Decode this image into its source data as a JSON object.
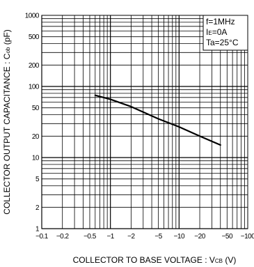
{
  "chart_data": {
    "type": "line",
    "x_scale": "log",
    "y_scale": "log",
    "xlim": [
      -0.1,
      -100
    ],
    "ylim": [
      1,
      1000
    ],
    "x_ticks": [
      -0.1,
      -0.2,
      -0.5,
      -1,
      -2,
      -5,
      -10,
      -20,
      -50,
      -100
    ],
    "x_tick_labels": [
      "−0.1",
      "−0.2",
      "−0.5",
      "−1",
      "−2",
      "−5",
      "−10",
      "−20",
      "−50",
      "−100"
    ],
    "y_ticks": [
      1,
      2,
      5,
      10,
      20,
      50,
      100,
      200,
      500,
      1000
    ],
    "y_tick_labels": [
      "1",
      "2",
      "5",
      "10",
      "20",
      "50",
      "100",
      "200",
      "500",
      "1000"
    ],
    "xlabel": "COLLECTOR TO BASE VOLTAGE : V",
    "xlabel_sub": "CB",
    "xlabel_unit": " (V)",
    "ylabel": "COLLECTOR OUTPUT CAPACITANCE : C",
    "ylabel_sub": "ob",
    "ylabel_unit": " (pF)",
    "grid": true,
    "legend": {
      "placement": "top-right",
      "lines": [
        {
          "main": "f=1MHz"
        },
        {
          "main": "I",
          "sub": "E",
          "rest": "=0A"
        },
        {
          "main": "Ta=25°C"
        }
      ]
    },
    "series": [
      {
        "x": [
          -0.6,
          -1,
          -2,
          -5,
          -10,
          -20,
          -40
        ],
        "y": [
          75,
          66,
          52,
          35,
          27,
          20,
          15
        ]
      }
    ]
  }
}
